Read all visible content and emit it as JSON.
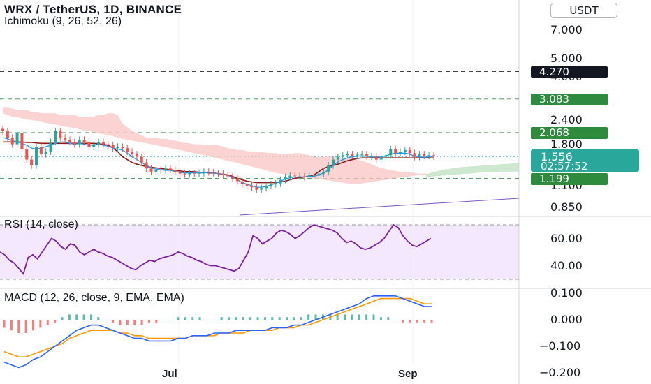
{
  "header": {
    "title": "WRX / TetherUS, 1D, BINANCE",
    "indicator": "Ichimoku (9, 26, 52, 26)",
    "currency_button": "USDT",
    "axis_cut_value": "9"
  },
  "price_axis": {
    "ticks": [
      "7.000",
      "5.000",
      "4.000",
      "2.400",
      "1.800",
      "1.100",
      "0.850"
    ],
    "tick_values": [
      7.0,
      5.0,
      4.0,
      2.4,
      1.8,
      1.1,
      0.85
    ]
  },
  "price_tags": [
    {
      "value": 4.27,
      "label": "4.270",
      "color": "#131722"
    },
    {
      "value": 3.083,
      "label": "3.083",
      "color": "#2e8b3e"
    },
    {
      "value": 2.068,
      "label": "2.068",
      "color": "#2e8b3e"
    },
    {
      "value": 1.199,
      "label": "1.199",
      "color": "#2e8b3e"
    }
  ],
  "current": {
    "price": "1.556",
    "countdown": "02:57:52",
    "value": 1.556,
    "color": "#2aa79b"
  },
  "rsi": {
    "label": "RSI (14, close)",
    "ticks": [
      "60.00",
      "40.00"
    ],
    "tick_values": [
      60,
      40
    ],
    "band": [
      30,
      70
    ]
  },
  "macd": {
    "label": "MACD (12, 26, close, 9, EMA, EMA)",
    "ticks": [
      "0.100",
      "0.000",
      "−0.100",
      "−0.200"
    ],
    "tick_values": [
      0.1,
      0.0,
      -0.1,
      -0.2
    ]
  },
  "time_axis": {
    "labels": [
      "Jul",
      "Sep"
    ]
  },
  "chart_data": {
    "type": "line",
    "title": "WRX / TetherUS, 1D, BINANCE",
    "scale": "log",
    "x_axis_labels": [
      "Jul",
      "Sep"
    ],
    "price": {
      "close": [
        2.1,
        1.95,
        1.8,
        2.05,
        1.7,
        1.5,
        1.4,
        1.75,
        1.6,
        1.65,
        1.85,
        2.1,
        1.95,
        1.9,
        1.85,
        1.8,
        1.9,
        1.85,
        1.75,
        1.8,
        1.85,
        1.8,
        1.78,
        1.72,
        1.75,
        1.72,
        1.65,
        1.6,
        1.55,
        1.45,
        1.35,
        1.3,
        1.33,
        1.32,
        1.35,
        1.33,
        1.3,
        1.27,
        1.26,
        1.28,
        1.27,
        1.28,
        1.3,
        1.29,
        1.28,
        1.27,
        1.25,
        1.23,
        1.2,
        1.16,
        1.12,
        1.1,
        1.08,
        1.05,
        1.07,
        1.1,
        1.12,
        1.13,
        1.18,
        1.22,
        1.24,
        1.23,
        1.23,
        1.22,
        1.25,
        1.24,
        1.27,
        1.3,
        1.4,
        1.5,
        1.55,
        1.58,
        1.6,
        1.57,
        1.59,
        1.6,
        1.56,
        1.56,
        1.5,
        1.55,
        1.58,
        1.7,
        1.62,
        1.65,
        1.68,
        1.62,
        1.55,
        1.6,
        1.57,
        1.58,
        1.556
      ],
      "tenkan": [
        1.95,
        1.92,
        1.88,
        1.85,
        1.82,
        1.78,
        1.72,
        1.7,
        1.72,
        1.75,
        1.78,
        1.82,
        1.85,
        1.85,
        1.82,
        1.8,
        1.82,
        1.8,
        1.78,
        1.78,
        1.8,
        1.78,
        1.76,
        1.72,
        1.7,
        1.68,
        1.62,
        1.55,
        1.5,
        1.45,
        1.4,
        1.36,
        1.34,
        1.33,
        1.32,
        1.32,
        1.3,
        1.29,
        1.28,
        1.28,
        1.28,
        1.28,
        1.28,
        1.29,
        1.28,
        1.27,
        1.26,
        1.24,
        1.22,
        1.18,
        1.14,
        1.12,
        1.1,
        1.08,
        1.08,
        1.09,
        1.11,
        1.13,
        1.16,
        1.19,
        1.21,
        1.22,
        1.22,
        1.22,
        1.23,
        1.23,
        1.25,
        1.28,
        1.33,
        1.4,
        1.46,
        1.5,
        1.53,
        1.55,
        1.56,
        1.57,
        1.56,
        1.55,
        1.54,
        1.55,
        1.57,
        1.6,
        1.62,
        1.62,
        1.62,
        1.6,
        1.56,
        1.55,
        1.54,
        1.55,
        1.56
      ],
      "kijun": [
        1.85,
        1.85,
        1.85,
        1.85,
        1.85,
        1.84,
        1.84,
        1.83,
        1.82,
        1.82,
        1.82,
        1.82,
        1.82,
        1.82,
        1.82,
        1.82,
        1.82,
        1.82,
        1.82,
        1.82,
        1.81,
        1.8,
        1.78,
        1.72,
        1.65,
        1.55,
        1.5,
        1.45,
        1.42,
        1.4,
        1.38,
        1.37,
        1.36,
        1.35,
        1.34,
        1.33,
        1.32,
        1.31,
        1.3,
        1.3,
        1.3,
        1.29,
        1.29,
        1.28,
        1.28,
        1.27,
        1.26,
        1.25,
        1.23,
        1.2,
        1.18,
        1.16,
        1.15,
        1.14,
        1.14,
        1.14,
        1.14,
        1.14,
        1.15,
        1.16,
        1.18,
        1.2,
        1.21,
        1.22,
        1.23,
        1.25,
        1.3,
        1.35,
        1.38,
        1.4,
        1.42,
        1.45,
        1.48,
        1.5,
        1.52,
        1.53,
        1.53,
        1.53,
        1.53,
        1.53,
        1.53,
        1.53,
        1.53,
        1.53,
        1.53,
        1.53,
        1.53,
        1.53,
        1.53,
        1.53,
        1.53
      ],
      "cloud_upper": [
        2.8,
        2.8,
        2.75,
        2.7,
        2.7,
        2.7,
        2.65,
        2.65,
        2.6,
        2.6,
        2.6,
        2.6,
        2.55,
        2.55,
        2.55,
        2.55,
        2.5,
        2.5,
        2.5,
        2.5,
        2.55,
        2.55,
        2.6,
        2.6,
        2.55,
        2.3,
        2.2,
        2.1,
        2.05,
        2.0,
        1.95,
        1.95,
        1.95,
        1.92,
        1.92,
        1.9,
        1.88,
        1.85,
        1.83,
        1.82,
        1.8,
        1.8,
        1.78,
        1.78,
        1.78,
        1.78,
        1.75,
        1.72,
        1.7,
        1.68,
        1.68,
        1.66,
        1.65,
        1.65,
        1.64,
        1.63,
        1.62,
        1.62,
        1.6,
        1.6,
        1.6,
        1.62,
        1.62,
        1.6,
        1.58,
        1.55,
        1.55,
        1.55,
        1.56,
        1.55,
        1.55,
        1.53,
        1.52,
        1.52,
        1.5,
        1.48,
        1.45,
        1.42,
        1.38,
        1.36,
        1.34,
        1.32,
        1.31,
        1.3,
        1.3,
        1.29,
        1.28,
        1.27,
        1.27,
        1.26,
        1.26
      ],
      "cloud_lower": [
        2.6,
        2.55,
        2.5,
        2.48,
        2.45,
        2.42,
        2.4,
        2.38,
        2.35,
        2.32,
        2.3,
        2.28,
        2.25,
        2.22,
        2.2,
        2.18,
        2.15,
        2.12,
        2.1,
        2.08,
        2.05,
        2.03,
        2.0,
        1.98,
        1.95,
        1.92,
        1.9,
        1.88,
        1.86,
        1.84,
        1.82,
        1.8,
        1.78,
        1.76,
        1.74,
        1.72,
        1.7,
        1.68,
        1.66,
        1.64,
        1.62,
        1.6,
        1.58,
        1.56,
        1.54,
        1.52,
        1.5,
        1.48,
        1.46,
        1.44,
        1.42,
        1.4,
        1.38,
        1.36,
        1.34,
        1.32,
        1.3,
        1.28,
        1.27,
        1.26,
        1.25,
        1.24,
        1.23,
        1.22,
        1.21,
        1.2,
        1.19,
        1.18,
        1.17,
        1.16,
        1.15,
        1.14,
        1.13,
        1.12,
        1.12,
        1.13,
        1.14,
        1.15,
        1.16,
        1.17,
        1.18,
        1.19,
        1.2,
        1.21,
        1.22,
        1.23,
        1.24,
        1.25,
        1.25,
        1.25,
        1.25
      ],
      "cloud_green_upper": [
        1.26,
        1.3,
        1.33,
        1.35,
        1.37,
        1.38,
        1.39,
        1.4,
        1.41,
        1.42,
        1.43,
        1.45
      ],
      "cloud_green_lower": [
        1.22,
        1.23,
        1.24,
        1.25,
        1.26,
        1.27,
        1.28,
        1.29,
        1.29,
        1.3,
        1.3,
        1.3
      ],
      "trendline": [
        [
          0.85,
          0.9
        ]
      ]
    },
    "rsi_values": [
      50,
      48,
      44,
      42,
      38,
      34,
      46,
      48,
      45,
      50,
      55,
      60,
      58,
      54,
      52,
      56,
      55,
      50,
      48,
      50,
      52,
      50,
      49,
      47,
      46,
      44,
      42,
      40,
      38,
      37,
      40,
      42,
      44,
      43,
      45,
      46,
      47,
      48,
      50,
      49,
      47,
      46,
      44,
      43,
      41,
      40,
      40,
      39,
      38,
      37,
      36,
      38,
      44,
      50,
      62,
      60,
      56,
      58,
      60,
      64,
      66,
      65,
      63,
      60,
      62,
      65,
      68,
      70,
      69,
      68,
      67,
      66,
      64,
      60,
      57,
      58,
      56,
      53,
      52,
      53,
      55,
      57,
      60,
      65,
      70,
      68,
      62,
      58,
      55,
      54,
      56,
      58,
      60
    ],
    "macd": {
      "macd_line": [
        -0.16,
        -0.17,
        -0.18,
        -0.17,
        -0.15,
        -0.14,
        -0.12,
        -0.1,
        -0.08,
        -0.06,
        -0.04,
        -0.03,
        -0.02,
        -0.02,
        -0.03,
        -0.04,
        -0.05,
        -0.06,
        -0.07,
        -0.07,
        -0.08,
        -0.08,
        -0.08,
        -0.08,
        -0.07,
        -0.07,
        -0.06,
        -0.06,
        -0.06,
        -0.05,
        -0.05,
        -0.05,
        -0.04,
        -0.04,
        -0.04,
        -0.04,
        -0.04,
        -0.03,
        -0.03,
        -0.03,
        -0.02,
        -0.02,
        -0.01,
        0.0,
        0.01,
        0.02,
        0.03,
        0.04,
        0.05,
        0.06,
        0.08,
        0.09,
        0.09,
        0.09,
        0.09,
        0.08,
        0.07,
        0.06,
        0.05,
        0.05
      ],
      "signal_line": [
        -0.12,
        -0.13,
        -0.14,
        -0.14,
        -0.13,
        -0.12,
        -0.11,
        -0.1,
        -0.09,
        -0.07,
        -0.06,
        -0.05,
        -0.04,
        -0.04,
        -0.04,
        -0.04,
        -0.05,
        -0.05,
        -0.06,
        -0.06,
        -0.07,
        -0.07,
        -0.07,
        -0.07,
        -0.07,
        -0.07,
        -0.06,
        -0.06,
        -0.06,
        -0.06,
        -0.05,
        -0.05,
        -0.05,
        -0.05,
        -0.04,
        -0.04,
        -0.04,
        -0.04,
        -0.03,
        -0.03,
        -0.03,
        -0.02,
        -0.02,
        -0.01,
        0.0,
        0.01,
        0.02,
        0.03,
        0.04,
        0.05,
        0.06,
        0.07,
        0.08,
        0.08,
        0.08,
        0.08,
        0.08,
        0.07,
        0.06,
        0.06
      ],
      "histogram": [
        -0.03,
        -0.04,
        -0.05,
        -0.05,
        -0.04,
        -0.03,
        -0.02,
        -0.01,
        0.01,
        0.02,
        0.02,
        0.02,
        0.02,
        0.01,
        0.0,
        -0.01,
        -0.02,
        -0.02,
        -0.02,
        -0.02,
        -0.01,
        -0.01,
        0.0,
        0.0,
        0.01,
        0.01,
        0.01,
        0.01,
        0.0,
        0.0,
        0.01,
        0.01,
        0.01,
        0.01,
        0.01,
        0.01,
        0.01,
        0.01,
        0.01,
        0.01,
        0.01,
        0.01,
        0.02,
        0.02,
        0.02,
        0.02,
        0.02,
        0.02,
        0.02,
        0.02,
        0.02,
        0.02,
        0.01,
        0.01,
        0.0,
        -0.01,
        -0.01,
        -0.01,
        -0.01,
        -0.01
      ]
    }
  }
}
